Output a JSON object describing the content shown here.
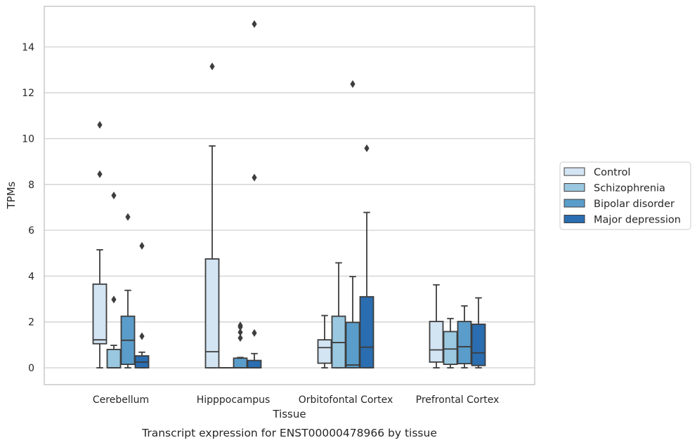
{
  "chart_data": {
    "type": "box",
    "xlabel": "Tissue",
    "ylabel": "TPMs",
    "caption": "Transcript expression for ENST00000478966 by tissue",
    "ylim": [
      -0.7,
      15.6
    ],
    "yticks": [
      0,
      2,
      4,
      6,
      8,
      10,
      12,
      14
    ],
    "grid": "horizontal",
    "legend_placement": "right",
    "categories": [
      "Cerebellum",
      "Hipppocampus",
      "Orbitofontal Cortex",
      "Prefrontal Cortex"
    ],
    "series": [
      {
        "name": "Control",
        "color": "#d3e4f3",
        "boxes": [
          {
            "whislo": 0,
            "q1": 1.05,
            "med": 1.22,
            "q3": 3.65,
            "whishi": 5.15,
            "fliers": [
              10.6,
              8.45
            ]
          },
          {
            "whislo": 0,
            "q1": 0,
            "med": 0.7,
            "q3": 4.75,
            "whishi": 9.68,
            "fliers": [
              13.15
            ]
          },
          {
            "whislo": 0,
            "q1": 0.2,
            "med": 0.88,
            "q3": 1.22,
            "whishi": 2.28,
            "fliers": []
          },
          {
            "whislo": 0,
            "q1": 0.25,
            "med": 0.78,
            "q3": 2.02,
            "whishi": 3.62,
            "fliers": []
          }
        ]
      },
      {
        "name": "Schizophrenia",
        "color": "#9ac8e0",
        "boxes": [
          {
            "whislo": 0,
            "q1": 0,
            "med": 0,
            "q3": 0.8,
            "whishi": 0.98,
            "fliers": [
              2.98,
              7.52
            ]
          },
          {
            "whislo": 0,
            "q1": 0,
            "med": 0,
            "q3": 0,
            "whishi": 0,
            "fliers": []
          },
          {
            "whislo": 0,
            "q1": 0,
            "med": 1.1,
            "q3": 2.25,
            "whishi": 4.58,
            "fliers": []
          },
          {
            "whislo": 0,
            "q1": 0.15,
            "med": 0.82,
            "q3": 1.58,
            "whishi": 2.15,
            "fliers": []
          }
        ]
      },
      {
        "name": "Bipolar disorder",
        "color": "#5a9dca",
        "boxes": [
          {
            "whislo": 0,
            "q1": 0.15,
            "med": 1.2,
            "q3": 2.25,
            "whishi": 3.38,
            "fliers": [
              6.58
            ]
          },
          {
            "whislo": 0,
            "q1": 0,
            "med": 0,
            "q3": 0.42,
            "whishi": 0.45,
            "fliers": [
              1.85,
              1.3,
              1.55,
              1.78
            ]
          },
          {
            "whislo": 0,
            "q1": 0,
            "med": 0.12,
            "q3": 1.98,
            "whishi": 3.98,
            "fliers": [
              12.38
            ]
          },
          {
            "whislo": 0,
            "q1": 0.18,
            "med": 0.92,
            "q3": 2.02,
            "whishi": 2.7,
            "fliers": []
          }
        ]
      },
      {
        "name": "Major depression",
        "color": "#2a6db0",
        "boxes": [
          {
            "whislo": 0,
            "q1": 0,
            "med": 0.25,
            "q3": 0.52,
            "whishi": 0.68,
            "fliers": [
              5.32,
              1.38
            ]
          },
          {
            "whislo": 0,
            "q1": 0,
            "med": 0,
            "q3": 0.32,
            "whishi": 0.62,
            "fliers": [
              8.3,
              15.0,
              1.52
            ]
          },
          {
            "whislo": 0,
            "q1": 0,
            "med": 0.9,
            "q3": 3.1,
            "whishi": 6.78,
            "fliers": [
              9.58
            ]
          },
          {
            "whislo": 0,
            "q1": 0.1,
            "med": 0.65,
            "q3": 1.9,
            "whishi": 3.05,
            "fliers": []
          }
        ]
      }
    ]
  }
}
